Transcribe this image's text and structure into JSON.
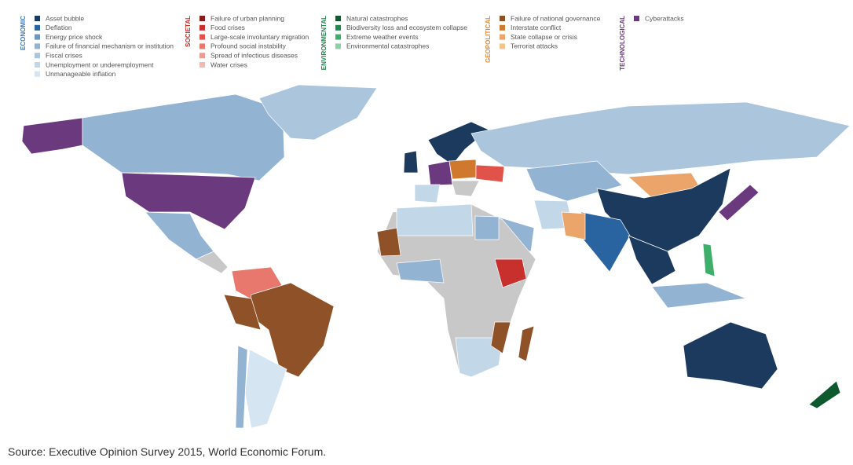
{
  "legend": [
    {
      "title": "ECONOMIC",
      "color": "#3a78b5",
      "items": [
        {
          "label": "Asset bubble",
          "color": "#1b3a5e"
        },
        {
          "label": "Deflation",
          "color": "#2a64a0"
        },
        {
          "label": "Energy price shock",
          "color": "#6f95c2"
        },
        {
          "label": "Failure of financial mechanism or institution",
          "color": "#93b3d3"
        },
        {
          "label": "Fiscal crises",
          "color": "#abc6dc"
        },
        {
          "label": "Unemployment or underemployment",
          "color": "#c2d8e8"
        },
        {
          "label": "Unmanageable inflation",
          "color": "#d5e6f2"
        }
      ]
    },
    {
      "title": "SOCIETAL",
      "color": "#c8302e",
      "items": [
        {
          "label": "Failure of urban planning",
          "color": "#8a1c1c"
        },
        {
          "label": "Food crises",
          "color": "#c8302e"
        },
        {
          "label": "Large-scale involuntary migration",
          "color": "#e0524a"
        },
        {
          "label": "Profound social instability",
          "color": "#e8786e"
        },
        {
          "label": "Spread of infectious diseases",
          "color": "#ee9a92"
        },
        {
          "label": "Water crises",
          "color": "#f2b9b2"
        }
      ]
    },
    {
      "title": "ENVIRONMENTAL",
      "color": "#1f8a4a",
      "items": [
        {
          "label": "Natural catastrophes",
          "color": "#0e5a2e"
        },
        {
          "label": "Biodiversity loss and ecosystem collapse",
          "color": "#1f8a4a"
        },
        {
          "label": "Extreme weather events",
          "color": "#3fae6a"
        },
        {
          "label": "Environmental catastrophes",
          "color": "#8fd0a6"
        }
      ]
    },
    {
      "title": "GEOPOLITICAL",
      "color": "#e08a3c",
      "items": [
        {
          "label": "Failure of national governance",
          "color": "#8f5128"
        },
        {
          "label": "Interstate conflict",
          "color": "#d0782e"
        },
        {
          "label": "State collapse or crisis",
          "color": "#eba46a"
        },
        {
          "label": "Terrorist attacks",
          "color": "#f4c48e"
        }
      ]
    },
    {
      "title": "TECHNOLOGICAL",
      "color": "#6b3a7e",
      "items": [
        {
          "label": "Cyberattacks",
          "color": "#6b3a7e"
        }
      ]
    }
  ],
  "source": "Source: Executive Opinion Survey 2015, World Economic Forum."
}
